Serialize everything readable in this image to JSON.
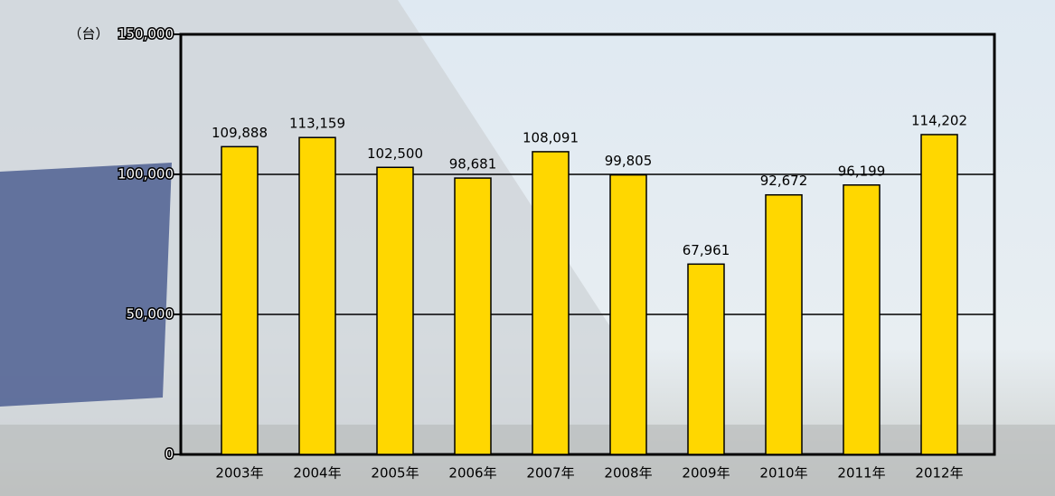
{
  "chart_data": {
    "type": "bar",
    "y_unit": "（台）",
    "categories": [
      "2003年",
      "2004年",
      "2005年",
      "2006年",
      "2007年",
      "2008年",
      "2009年",
      "2010年",
      "2011年",
      "2012年"
    ],
    "values": [
      109888,
      113159,
      102500,
      98681,
      108091,
      99805,
      67961,
      92672,
      96199,
      114202
    ],
    "value_labels": [
      "109,888",
      "113,159",
      "102,500",
      "98,681",
      "108,091",
      "99,805",
      "67,961",
      "92,672",
      "96,199",
      "114,202"
    ],
    "color": "#ffd700",
    "ylim": [
      0,
      150000
    ],
    "yticks": [
      0,
      {
        "value": 50000,
        "label": "50,000"
      },
      {
        "value": 100000,
        "label": "100,000"
      },
      {
        "value": 150000,
        "label": "150,000"
      }
    ],
    "grid": true
  }
}
